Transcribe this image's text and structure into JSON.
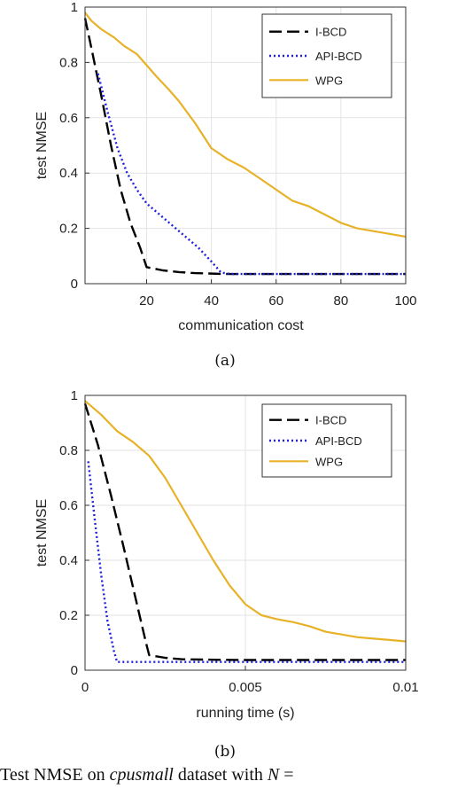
{
  "chart_data": [
    {
      "type": "line",
      "subtitle": "(a)",
      "xlabel": "communication cost",
      "ylabel": "test NMSE",
      "xlim": [
        1,
        100
      ],
      "ylim": [
        0,
        1
      ],
      "xticks": [
        20,
        40,
        60,
        80,
        100
      ],
      "yticks": [
        0,
        0.2,
        0.4,
        0.6,
        0.8,
        1
      ],
      "xtick_labels": [
        "20",
        "40",
        "60",
        "80",
        "100"
      ],
      "ytick_labels": [
        "0",
        "0.2",
        "0.4",
        "0.6",
        "0.8",
        "1"
      ],
      "grid": true,
      "legend_position": "top-right",
      "series": [
        {
          "name": "I-BCD",
          "style": "dashed",
          "color": "#000000",
          "x": [
            1,
            3,
            6,
            9,
            12,
            15,
            18,
            20,
            22,
            25,
            30,
            35,
            45,
            50,
            60,
            80,
            100
          ],
          "y": [
            0.96,
            0.85,
            0.68,
            0.5,
            0.34,
            0.22,
            0.13,
            0.06,
            0.055,
            0.048,
            0.042,
            0.038,
            0.035,
            0.035,
            0.035,
            0.035,
            0.035
          ]
        },
        {
          "name": "API-BCD",
          "style": "dotted",
          "color": "#1f1fdd",
          "x": [
            5,
            8,
            11,
            14,
            17,
            20,
            24,
            28,
            32,
            36,
            40,
            43,
            46,
            50,
            60,
            80,
            100
          ],
          "y": [
            0.76,
            0.62,
            0.49,
            0.4,
            0.34,
            0.29,
            0.25,
            0.21,
            0.17,
            0.13,
            0.08,
            0.04,
            0.035,
            0.035,
            0.035,
            0.035,
            0.035
          ]
        },
        {
          "name": "WPG",
          "style": "solid",
          "color": "#e8b228",
          "x": [
            1,
            3,
            6,
            10,
            13,
            17,
            20,
            23,
            27,
            30,
            35,
            40,
            45,
            50,
            55,
            60,
            65,
            70,
            75,
            80,
            85,
            90,
            95,
            100
          ],
          "y": [
            0.98,
            0.95,
            0.92,
            0.89,
            0.86,
            0.83,
            0.79,
            0.75,
            0.7,
            0.66,
            0.58,
            0.49,
            0.45,
            0.42,
            0.38,
            0.34,
            0.3,
            0.28,
            0.25,
            0.22,
            0.2,
            0.19,
            0.18,
            0.17
          ]
        }
      ]
    },
    {
      "type": "line",
      "subtitle": "(b)",
      "xlabel": "running time (s)",
      "ylabel": "test NMSE",
      "xlim": [
        0,
        0.01
      ],
      "ylim": [
        0,
        1
      ],
      "xticks": [
        0,
        0.005,
        0.01
      ],
      "yticks": [
        0,
        0.2,
        0.4,
        0.6,
        0.8,
        1
      ],
      "xtick_labels": [
        "0",
        "0.005",
        "0.01"
      ],
      "ytick_labels": [
        "0",
        "0.2",
        "0.4",
        "0.6",
        "0.8",
        "1"
      ],
      "grid": true,
      "legend_position": "top-right",
      "series": [
        {
          "name": "I-BCD",
          "style": "dashed",
          "color": "#000000",
          "x": [
            0,
            0.0004,
            0.0008,
            0.0012,
            0.0016,
            0.0019,
            0.002,
            0.0025,
            0.003,
            0.004,
            0.005,
            0.006,
            0.008,
            0.01
          ],
          "y": [
            0.97,
            0.82,
            0.64,
            0.45,
            0.25,
            0.1,
            0.055,
            0.045,
            0.04,
            0.038,
            0.037,
            0.037,
            0.037,
            0.037
          ]
        },
        {
          "name": "API-BCD",
          "style": "dotted",
          "color": "#1f1fdd",
          "x": [
            0.0001,
            0.0003,
            0.0005,
            0.0007,
            0.0009,
            0.001,
            0.002,
            0.004,
            0.006,
            0.008,
            0.01
          ],
          "y": [
            0.76,
            0.55,
            0.35,
            0.18,
            0.07,
            0.03,
            0.03,
            0.03,
            0.03,
            0.03,
            0.03
          ]
        },
        {
          "name": "WPG",
          "style": "solid",
          "color": "#e8b228",
          "x": [
            0,
            0.0005,
            0.001,
            0.0015,
            0.002,
            0.0025,
            0.003,
            0.0035,
            0.004,
            0.0045,
            0.005,
            0.0055,
            0.006,
            0.0065,
            0.007,
            0.0075,
            0.008,
            0.0085,
            0.009,
            0.0095,
            0.01
          ],
          "y": [
            0.98,
            0.93,
            0.87,
            0.83,
            0.78,
            0.7,
            0.6,
            0.5,
            0.4,
            0.31,
            0.24,
            0.2,
            0.185,
            0.175,
            0.16,
            0.14,
            0.13,
            0.12,
            0.115,
            0.11,
            0.105
          ]
        }
      ]
    }
  ],
  "caption": {
    "prefix": "Test NMSE on ",
    "dataset": "cpusmall",
    "middle": " dataset with ",
    "var": "N",
    "suffix": " ="
  }
}
